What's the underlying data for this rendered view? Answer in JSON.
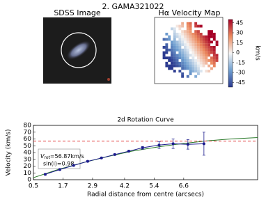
{
  "title": "2. GAMA321022",
  "sdss": {
    "title": "SDSS Image"
  },
  "velocity_map": {
    "title": "Hα Velocity Map",
    "colorbar": {
      "label": "km/s",
      "lim": [
        -52,
        50
      ],
      "ticks": [
        45,
        30,
        15,
        0,
        -15,
        -30,
        -45
      ]
    }
  },
  "chart_data": {
    "type": "line",
    "title": "2d Rotation Curve",
    "x_label": "Radial distance from centre (arcsecs)",
    "y_label": "Velocity (km/s)",
    "xlim": [
      0.5,
      9.6
    ],
    "ylim": [
      0,
      80
    ],
    "xticks": [
      0.5,
      1.7,
      2.9,
      4.2,
      5.4,
      6.6
    ],
    "yticks": [
      0,
      10,
      20,
      30,
      40,
      50,
      60,
      70,
      80
    ],
    "points": {
      "color": "#1a1a8c",
      "x": [
        0.98,
        1.57,
        2.13,
        2.7,
        3.26,
        3.8,
        4.37,
        4.93,
        5.6,
        6.17,
        6.77,
        7.42
      ],
      "values": [
        8,
        15,
        21,
        27,
        32,
        37,
        42,
        47,
        51,
        53,
        52,
        53
      ],
      "errors": [
        1,
        1,
        1,
        1,
        1,
        1,
        1,
        2,
        5,
        7,
        7,
        17
      ]
    },
    "fit": {
      "color": "#2a7a2a",
      "x": [
        0.5,
        1.5,
        2.5,
        3.5,
        4.5,
        5.5,
        6.5,
        7.5,
        8.5,
        9.6
      ],
      "values": [
        3,
        15,
        25,
        34,
        42,
        48,
        53,
        57,
        60,
        62
      ]
    },
    "vrot": 56.87,
    "vrot_color": "#e03030",
    "vrot_symbol": "V",
    "vrot_sub": "rot",
    "vrot_text": "=56.87km/s",
    "sini_text": "sin(i)=0.98"
  }
}
